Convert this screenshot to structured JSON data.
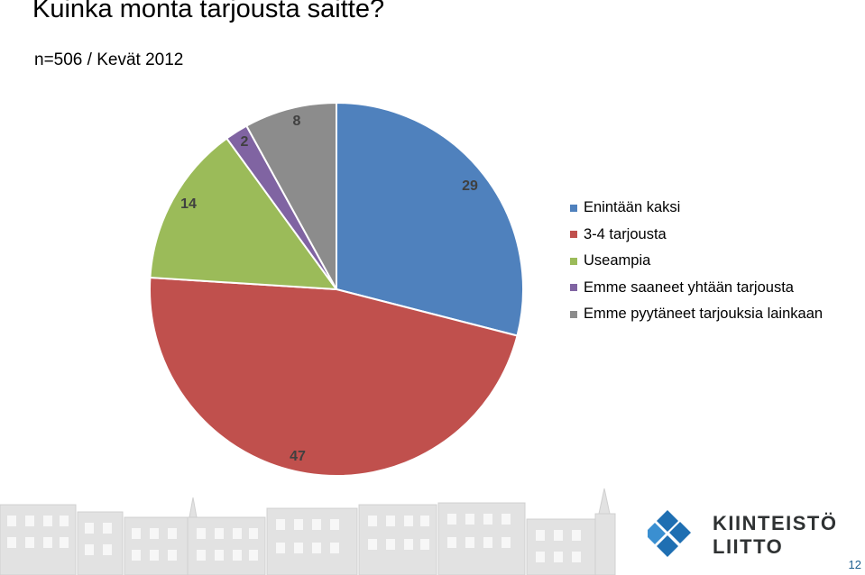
{
  "title": "Kuinka monta tarjousta saitte?",
  "subtitle": "n=506 / Kevät 2012",
  "chart_data": {
    "type": "pie",
    "categories": [
      "Enintään kaksi",
      "3-4 tarjousta",
      "Useampia",
      "Emme saaneet yhtään tarjousta",
      "Emme pyytäneet tarjouksia lainkaan"
    ],
    "values": [
      29,
      47,
      14,
      2,
      8
    ],
    "data_labels": [
      "29",
      "47",
      "14",
      "2",
      "8"
    ],
    "colors": [
      "#4f81bd",
      "#c0504d",
      "#9bbb59",
      "#8064a2",
      "#8c8c8c"
    ],
    "start_angle_deg": 0,
    "direction": "clockwise",
    "legend_position": "right"
  },
  "logo": {
    "line1": "KIINTEISTÖ",
    "line2": "LIITTO",
    "colors": [
      "#1f6fb2",
      "#3a8fd1"
    ]
  },
  "page_number": "12"
}
